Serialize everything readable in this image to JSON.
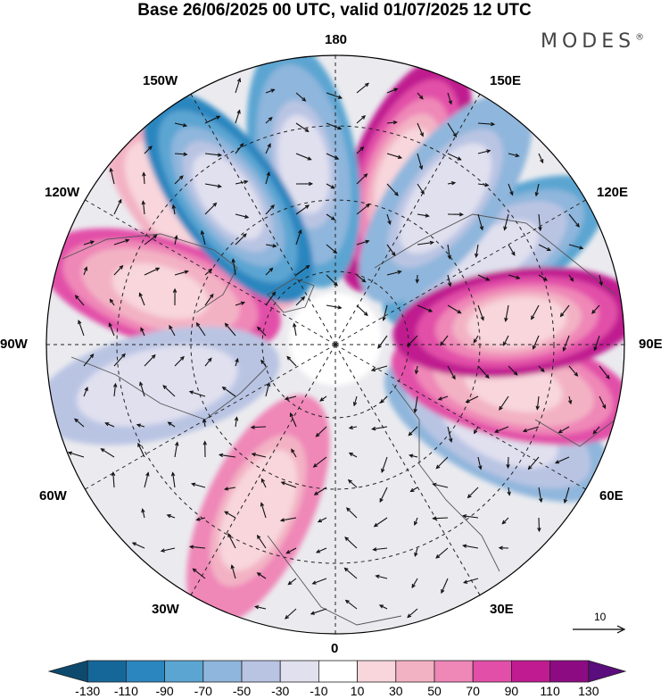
{
  "header": {
    "title": "Base 26/06/2025 00 UTC, valid 01/07/2025 12 UTC",
    "brand": "MODES",
    "brand_mark": "®"
  },
  "map": {
    "projection": "north-polar-stereographic",
    "longitude_labels": {
      "top": "180",
      "top_left": "150W",
      "top_right": "150E",
      "upper_left": "120W",
      "upper_right": "120E",
      "left": "90W",
      "right": "90E",
      "lower_left": "60W",
      "lower_right": "60E",
      "bottom_left": "30W",
      "bottom_right": "30E",
      "bottom": "0"
    },
    "anomaly_centers": [
      {
        "lon": 158,
        "value": 95,
        "sign": "positive"
      },
      {
        "lon": 120,
        "value": -75,
        "sign": "negative"
      },
      {
        "lon": 63,
        "value": -55,
        "sign": "negative"
      },
      {
        "lon": 77,
        "value": 75,
        "sign": "positive"
      },
      {
        "lon": 97,
        "value": 105,
        "sign": "positive"
      },
      {
        "lon": 143,
        "value": -65,
        "sign": "negative"
      },
      {
        "lon": 190,
        "value": -85,
        "sign": "negative"
      },
      {
        "lon": 226,
        "value": 35,
        "sign": "positive"
      },
      {
        "lon": 253,
        "value": 70,
        "sign": "positive"
      },
      {
        "lon": 283,
        "value": -45,
        "sign": "negative"
      },
      {
        "lon": 335,
        "value": 65,
        "sign": "positive"
      },
      {
        "lon": 216,
        "value": -95,
        "sign": "negative"
      }
    ],
    "colors": {
      "negative_strong": "#0b4a6e",
      "positive_strong": "#4b0f7a",
      "land": "#555555",
      "grid": "#222222"
    }
  },
  "vector_key": {
    "label": "10"
  },
  "colorbar": {
    "levels": [
      -150,
      -130,
      -110,
      -90,
      -70,
      -50,
      -30,
      -10,
      10,
      30,
      50,
      70,
      90,
      110,
      130,
      150
    ],
    "tick_labels": [
      "-130",
      "-110",
      "-90",
      "-70",
      "-50",
      "-30",
      "-10",
      "10",
      "30",
      "50",
      "70",
      "90",
      "110",
      "130"
    ],
    "colors": [
      "#0d4a6e",
      "#15679a",
      "#2b86bf",
      "#5ba5d2",
      "#8fb6dc",
      "#b9c4e3",
      "#e0e0ef",
      "#ffffff",
      "#f8d6dc",
      "#f3b2c4",
      "#ef87b7",
      "#e24fa8",
      "#c01b90",
      "#8c0b82",
      "#5a0d7d"
    ]
  }
}
